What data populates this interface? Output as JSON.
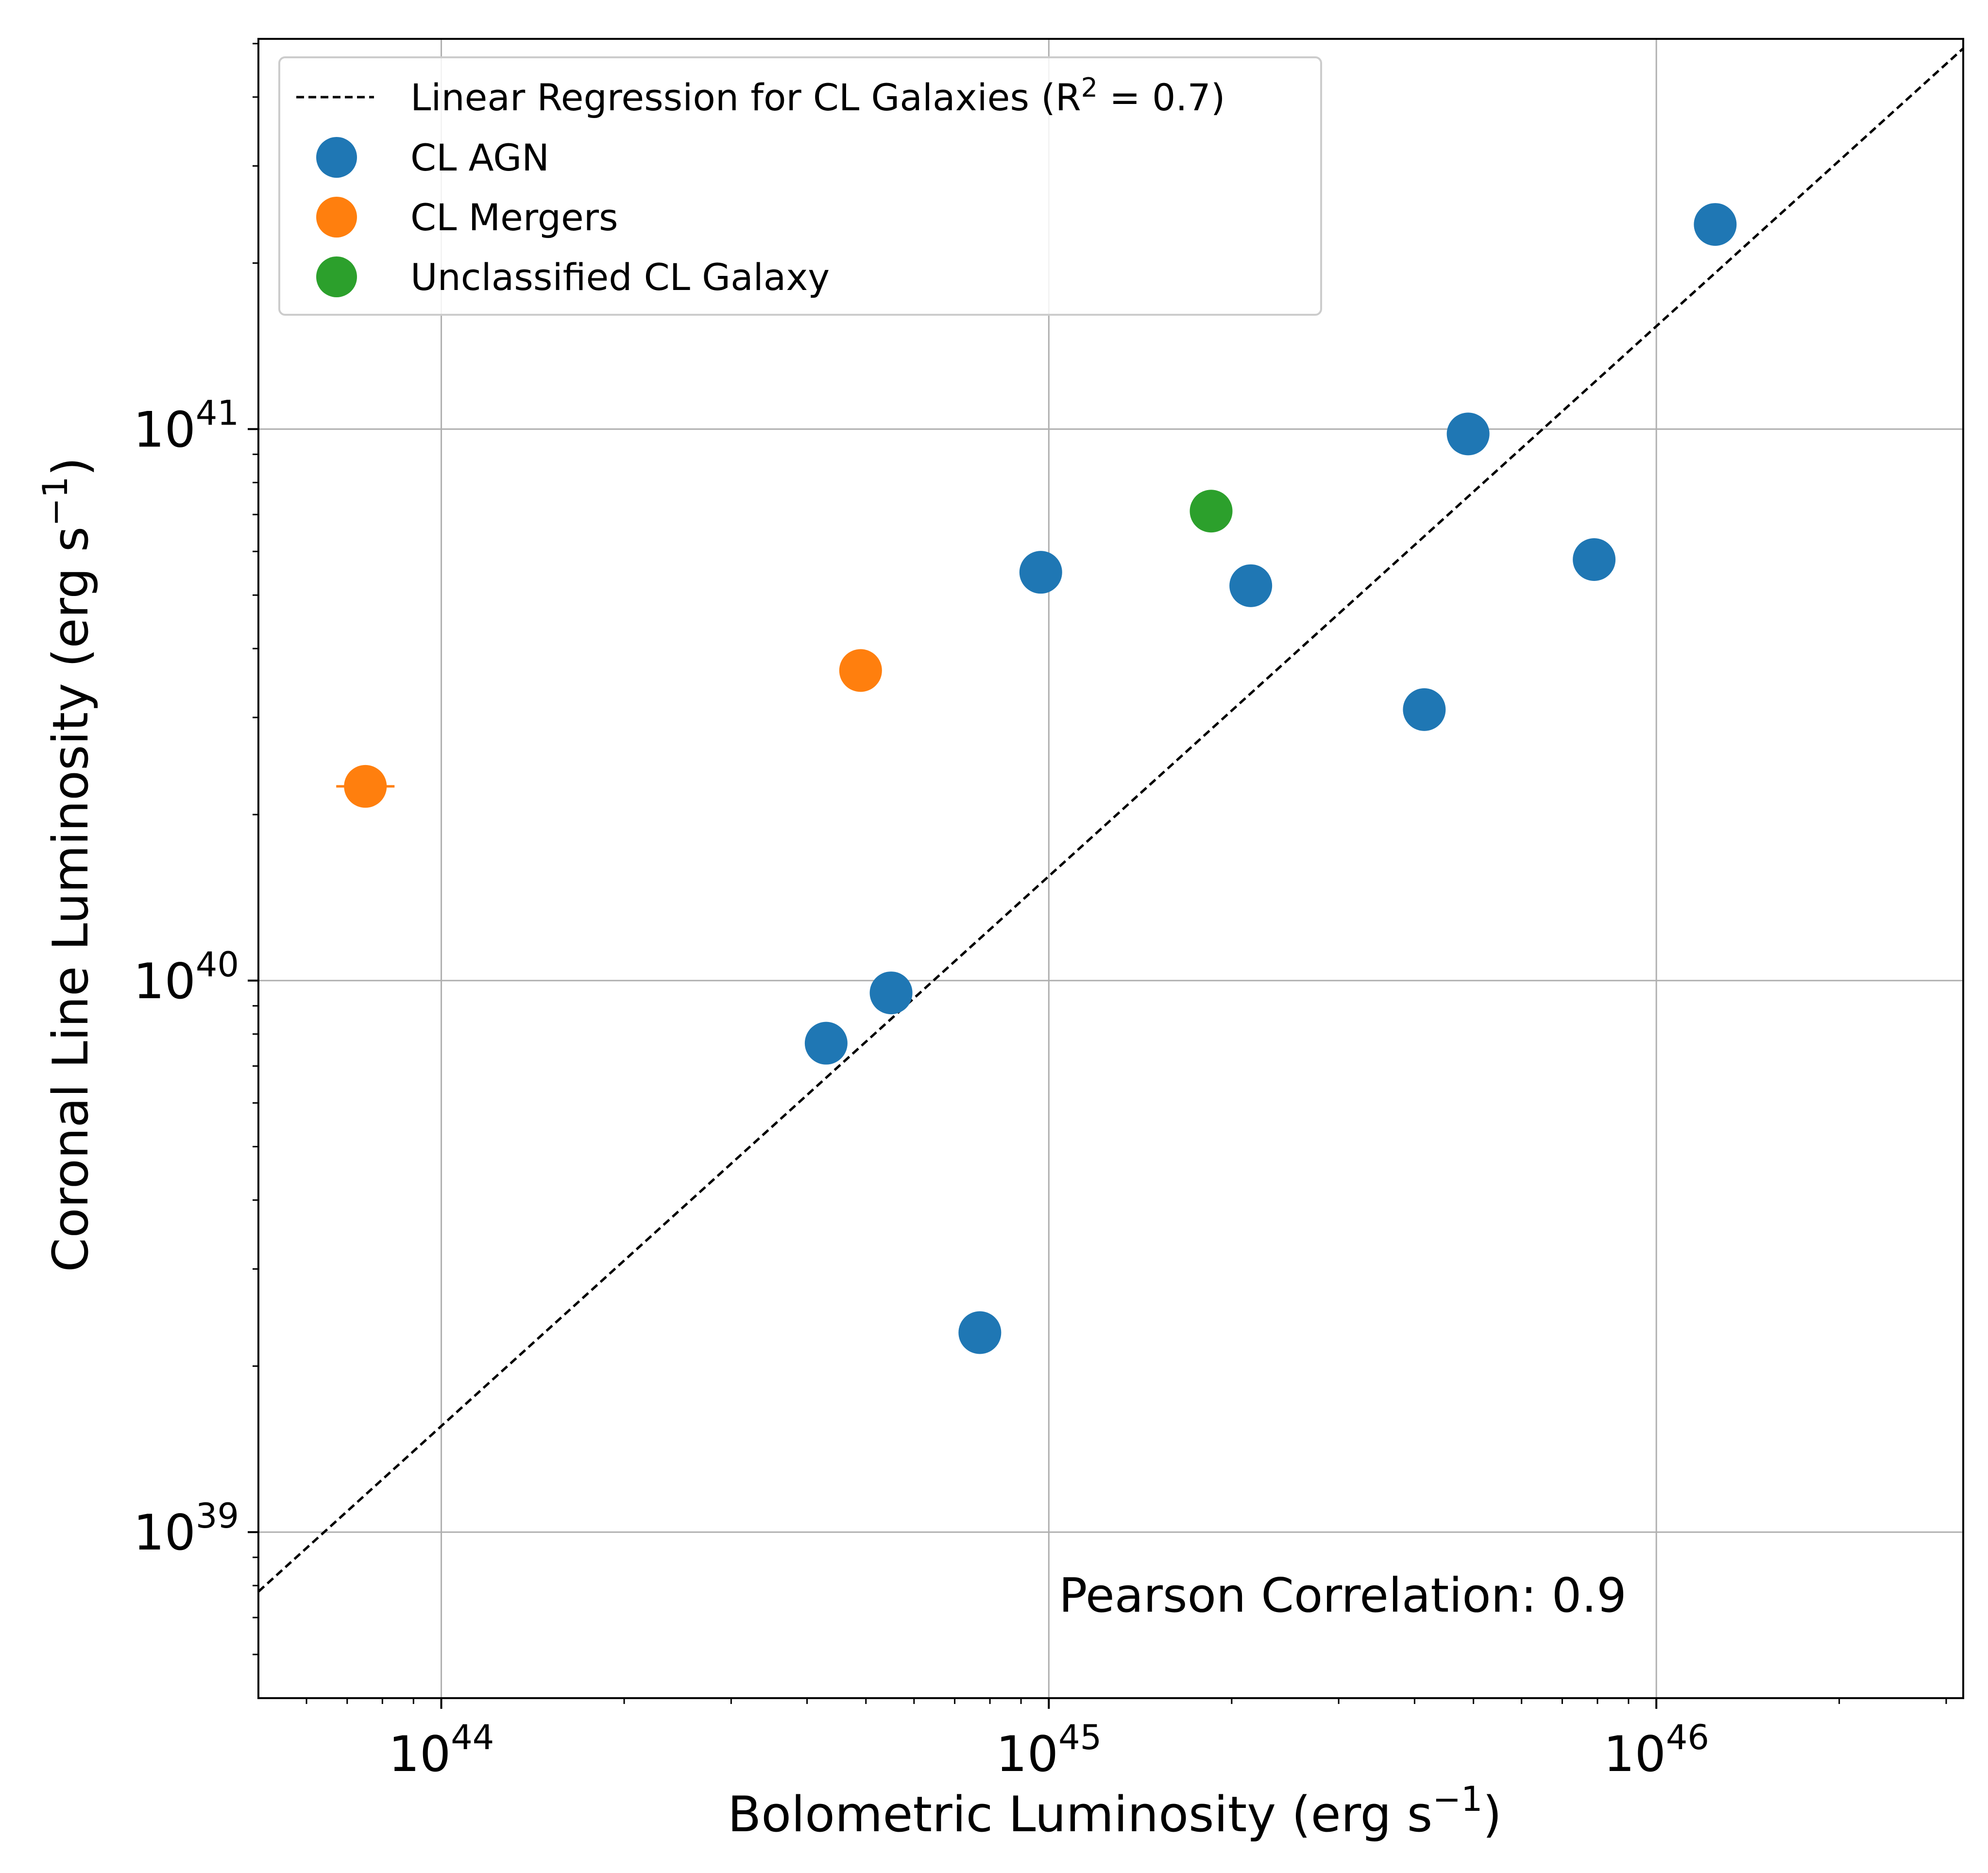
{
  "chart_data": {
    "type": "scatter",
    "xscale": "log",
    "yscale": "log",
    "xlabel": "Bolometric Luminosity (erg s⁻¹)",
    "ylabel": "Coronal Line Luminosity (erg s⁻¹)",
    "xlim": [
      5e+43,
      3.2e+46
    ],
    "ylim": [
      5e+38,
      5.1e+41
    ],
    "x_ticks": [
      {
        "value": 1e+44,
        "base": "10",
        "exp": "44"
      },
      {
        "value": 1e+45,
        "base": "10",
        "exp": "45"
      },
      {
        "value": 1e+46,
        "base": "10",
        "exp": "46"
      }
    ],
    "y_ticks": [
      {
        "value": 1e+39,
        "base": "10",
        "exp": "39"
      },
      {
        "value": 1e+40,
        "base": "10",
        "exp": "40"
      },
      {
        "value": 1e+41,
        "base": "10",
        "exp": "41"
      }
    ],
    "grid": true,
    "legend_position": "top-left",
    "regression": {
      "label": "Linear Regression for CL Galaxies (R² = 0.7)",
      "label_main": "Linear Regression for CL Galaxies (R",
      "label_sup": "2",
      "label_tail": " = 0.7)",
      "style": "dashed",
      "color": "#000000",
      "points": [
        [
          5e+43,
          7.8e+38
        ],
        [
          3.2e+46,
          4.9e+41
        ]
      ]
    },
    "series": [
      {
        "name": "CL AGN",
        "color": "#1f77b4",
        "points": [
          [
            4.3e+44,
            7.7e+39
          ],
          [
            5.5e+44,
            9.5e+39
          ],
          [
            7.7e+44,
            2.3e+39
          ],
          [
            9.7e+44,
            5.5e+40
          ],
          [
            2.15e+45,
            5.2e+40
          ],
          [
            4.15e+45,
            3.1e+40
          ],
          [
            4.9e+45,
            9.8e+40
          ],
          [
            7.9e+45,
            5.8e+40
          ],
          [
            1.25e+46,
            2.35e+41
          ]
        ]
      },
      {
        "name": "CL Mergers",
        "color": "#ff7f0e",
        "points": [
          [
            7.5e+43,
            2.25e+40
          ],
          [
            4.9e+44,
            3.65e+40
          ]
        ]
      },
      {
        "name": "Unclassified CL Galaxy",
        "color": "#2ca02c",
        "points": [
          [
            1.85e+45,
            7.1e+40
          ]
        ]
      }
    ],
    "annotation": "Pearson Correlation: 0.9"
  }
}
